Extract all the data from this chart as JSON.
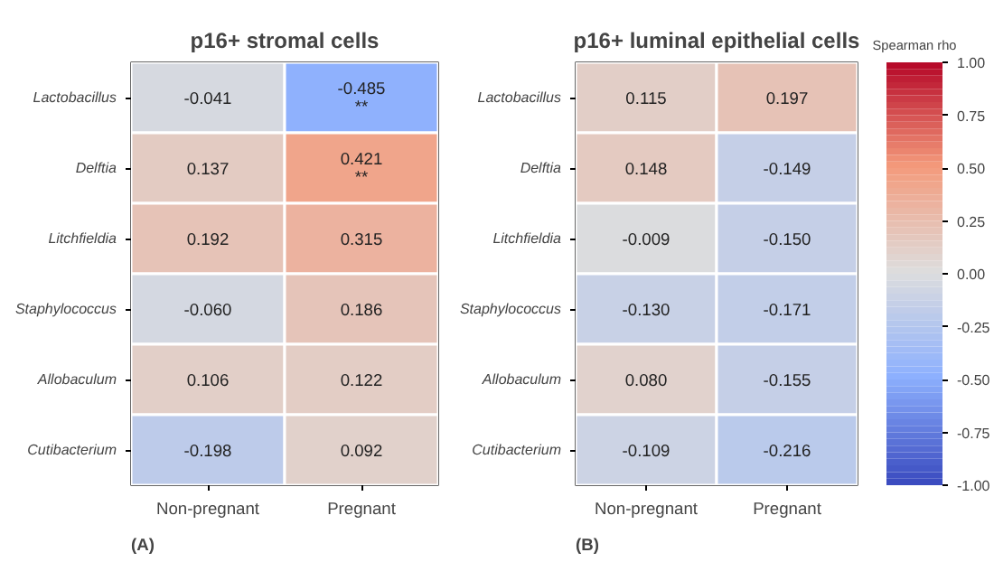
{
  "chart_data": [
    {
      "type": "heatmap",
      "title": "p16+ stromal cells",
      "categories": [
        "Non-pregnant",
        "Pregnant"
      ],
      "y_categories": [
        "Lactobacillus",
        "Delftia",
        "Litchfieldia",
        "Staphylococcus",
        "Allobaculum",
        "Cutibacterium"
      ],
      "cells": [
        [
          -0.041,
          -0.485
        ],
        [
          0.137,
          0.421
        ],
        [
          0.192,
          0.315
        ],
        [
          -0.06,
          0.186
        ],
        [
          0.106,
          0.122
        ],
        [
          -0.198,
          0.092
        ]
      ],
      "cell_labels": [
        [
          "-0.041",
          "-0.485\n**"
        ],
        [
          "0.137",
          "0.421\n**"
        ],
        [
          "0.192",
          "0.315"
        ],
        [
          "-0.060",
          "0.186"
        ],
        [
          "0.106",
          "0.122"
        ],
        [
          "-0.198",
          "0.092"
        ]
      ],
      "annotations": [
        "(A)"
      ]
    },
    {
      "type": "heatmap",
      "title": "p16+ luminal epithelial cells",
      "categories": [
        "Non-pregnant",
        "Pregnant"
      ],
      "y_categories": [
        "Lactobacillus",
        "Delftia",
        "Litchfieldia",
        "Staphylococcus",
        "Allobaculum",
        "Cutibacterium"
      ],
      "cells": [
        [
          0.115,
          0.197
        ],
        [
          0.148,
          -0.149
        ],
        [
          -0.009,
          -0.15
        ],
        [
          -0.13,
          -0.171
        ],
        [
          0.08,
          -0.155
        ],
        [
          -0.109,
          -0.216
        ]
      ],
      "cell_labels": [
        [
          "0.115",
          "0.197"
        ],
        [
          "0.148",
          "-0.149"
        ],
        [
          "-0.009",
          "-0.150"
        ],
        [
          "-0.130",
          "-0.171"
        ],
        [
          "0.080",
          "-0.155"
        ],
        [
          "-0.109",
          "-0.216"
        ]
      ],
      "clim": [
        -1,
        1
      ],
      "clabel": "Spearman rho",
      "cticks": [
        {
          "value": 1,
          "label": "1.00"
        },
        {
          "value": 0.75,
          "label": "0.75"
        },
        {
          "value": 0.5,
          "label": "0.50"
        },
        {
          "value": 0.25,
          "label": "0.25"
        },
        {
          "value": 0,
          "label": "0.00"
        },
        {
          "value": -0.25,
          "label": "-0.25"
        },
        {
          "value": -0.5,
          "label": "-0.50"
        },
        {
          "value": -0.75,
          "label": "-0.75"
        },
        {
          "value": -1,
          "label": "-1.00"
        }
      ],
      "annotations": [
        "(B)"
      ]
    }
  ]
}
